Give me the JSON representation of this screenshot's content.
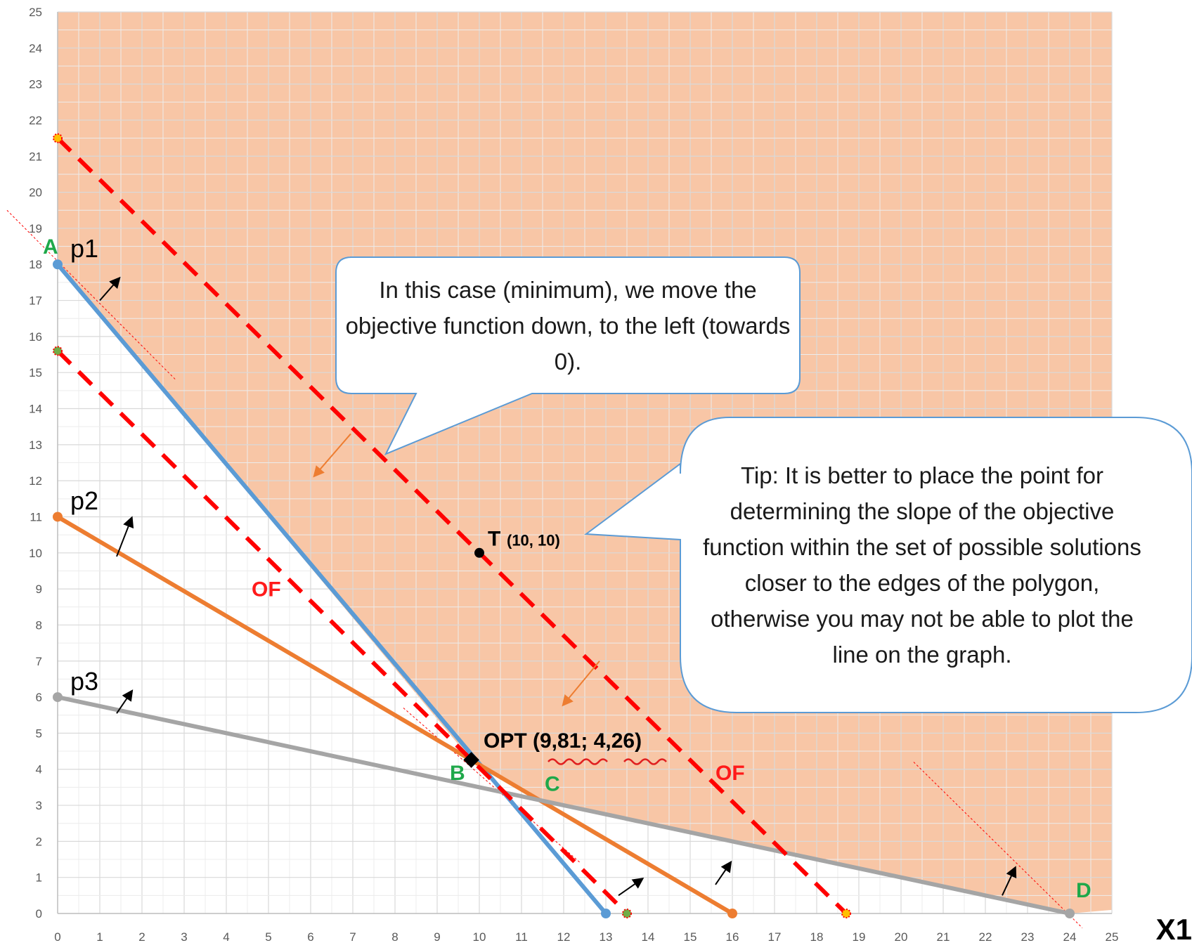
{
  "chart_data": {
    "type": "line",
    "xlabel": "X1",
    "ylabel": "",
    "xlim": [
      0,
      25
    ],
    "ylim": [
      0,
      25
    ],
    "x_ticks": [
      "0",
      "1",
      "2",
      "3",
      "4",
      "5",
      "6",
      "7",
      "8",
      "9",
      "10",
      "11",
      "12",
      "13",
      "14",
      "15",
      "16",
      "17",
      "18",
      "19",
      "20",
      "21",
      "22",
      "23",
      "24",
      "25"
    ],
    "y_ticks": [
      "0",
      "1",
      "2",
      "3",
      "4",
      "5",
      "6",
      "7",
      "8",
      "9",
      "10",
      "11",
      "12",
      "13",
      "14",
      "15",
      "16",
      "17",
      "18",
      "19",
      "20",
      "21",
      "22",
      "23",
      "24",
      "25"
    ],
    "grid": true,
    "feasible_region_color": "#f8c6a6",
    "constraints": [
      {
        "name": "p1",
        "color": "#5b9bd5",
        "points": [
          [
            0,
            18
          ],
          [
            13,
            0
          ]
        ]
      },
      {
        "name": "p2",
        "color": "#ed7d31",
        "points": [
          [
            0,
            11
          ],
          [
            16,
            0
          ]
        ]
      },
      {
        "name": "p3",
        "color": "#a5a5a5",
        "points": [
          [
            0,
            6
          ],
          [
            24,
            0
          ]
        ]
      }
    ],
    "objective_lines": [
      {
        "label": "OF",
        "color": "#ff0000",
        "style": "dashed",
        "points": [
          [
            0,
            21.5
          ],
          [
            18.7,
            0
          ]
        ]
      },
      {
        "label": "OF",
        "color": "#ff0000",
        "style": "dashed",
        "points": [
          [
            0,
            15.6
          ],
          [
            13.5,
            0
          ]
        ]
      }
    ],
    "vertices": [
      {
        "label": "A",
        "x": 0,
        "y": 18
      },
      {
        "label": "B",
        "x": 9.81,
        "y": 4.26
      },
      {
        "label": "C",
        "x": 11.4,
        "y": 3.2
      },
      {
        "label": "D",
        "x": 24,
        "y": 0
      }
    ],
    "points": [
      {
        "label": "T",
        "coords": "(10, 10)",
        "x": 10,
        "y": 10
      },
      {
        "label": "OPT (9,81; 4,26)",
        "x": 9.81,
        "y": 4.26
      }
    ],
    "callouts": [
      {
        "text": "In this case (minimum), we move the objective function down, to the left (towards 0)."
      },
      {
        "text": "Tip: It is better to place the point for determining the slope of the objective function within the set of possible solutions closer to the edges of the polygon, otherwise you may not be able to plot the line on the graph."
      }
    ]
  }
}
